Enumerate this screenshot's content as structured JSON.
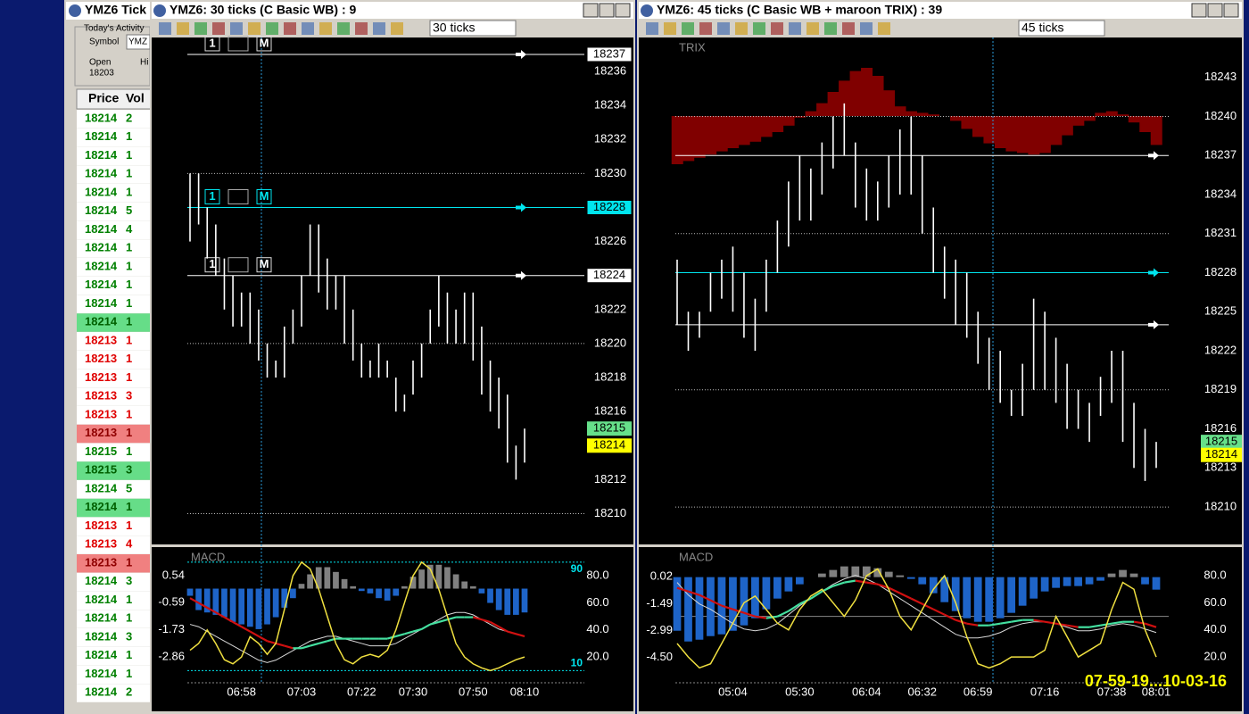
{
  "tick_window": {
    "title": "YMZ6 Tick",
    "activity": "Today's Activity",
    "symbol_label": "Symbol",
    "symbol": "YMZ",
    "open_label": "Open",
    "open": 18203,
    "high_label": "Hi",
    "columns": [
      "Price",
      "Vol"
    ],
    "styles": {
      "buy": {
        "color": "#008000",
        "bg": "#ffffff"
      },
      "buy-hl": {
        "color": "#006000",
        "bg": "#66dd88"
      },
      "sell": {
        "color": "#e00000",
        "bg": "#ffffff"
      },
      "sell-hl": {
        "color": "#900000",
        "bg": "#f08080"
      }
    },
    "rows": [
      [
        18214,
        2,
        "buy"
      ],
      [
        18214,
        1,
        "buy"
      ],
      [
        18214,
        1,
        "buy"
      ],
      [
        18214,
        1,
        "buy"
      ],
      [
        18214,
        1,
        "buy"
      ],
      [
        18214,
        5,
        "buy"
      ],
      [
        18214,
        4,
        "buy"
      ],
      [
        18214,
        1,
        "buy"
      ],
      [
        18214,
        1,
        "buy"
      ],
      [
        18214,
        1,
        "buy"
      ],
      [
        18214,
        1,
        "buy"
      ],
      [
        18214,
        1,
        "buy-hl"
      ],
      [
        18213,
        1,
        "sell"
      ],
      [
        18213,
        1,
        "sell"
      ],
      [
        18213,
        1,
        "sell"
      ],
      [
        18213,
        3,
        "sell"
      ],
      [
        18213,
        1,
        "sell"
      ],
      [
        18213,
        1,
        "sell-hl"
      ],
      [
        18215,
        1,
        "buy"
      ],
      [
        18215,
        3,
        "buy-hl"
      ],
      [
        18214,
        5,
        "buy"
      ],
      [
        18214,
        1,
        "buy-hl"
      ],
      [
        18213,
        1,
        "sell"
      ],
      [
        18213,
        4,
        "sell"
      ],
      [
        18213,
        1,
        "sell-hl"
      ],
      [
        18214,
        3,
        "buy"
      ],
      [
        18214,
        1,
        "buy"
      ],
      [
        18214,
        1,
        "buy"
      ],
      [
        18214,
        3,
        "buy"
      ],
      [
        18214,
        1,
        "buy"
      ],
      [
        18214,
        1,
        "buy"
      ],
      [
        18214,
        2,
        "buy"
      ]
    ]
  },
  "chart_data": [
    {
      "type": "price",
      "title": "YMZ6: 30 ticks (C  Basic WB) : 9",
      "interval": "30 ticks",
      "color": "#ffffff",
      "level_labels": true,
      "categories": [
        null,
        null,
        null,
        null,
        null,
        null,
        "06:58",
        null,
        null,
        null,
        null,
        null,
        null,
        "07:03",
        null,
        null,
        null,
        null,
        null,
        null,
        "07:22",
        null,
        null,
        null,
        null,
        null,
        "07:30",
        null,
        null,
        null,
        null,
        null,
        null,
        "07:50",
        null,
        null,
        null,
        null,
        null,
        "08:10"
      ],
      "high": [
        18230,
        18230,
        18228,
        18227,
        18225,
        18224,
        18223,
        18223,
        18222,
        18220,
        18219,
        18221,
        18222,
        18224,
        18227,
        18227,
        18225,
        18224,
        18224,
        18222,
        18220,
        18219,
        18220,
        18219,
        18218,
        18217,
        18219,
        18220,
        18222,
        18224,
        18223,
        18222,
        18223,
        18223,
        18221,
        18219,
        18218,
        18217,
        18214,
        18215
      ],
      "low": [
        18226,
        18227,
        18225,
        18224,
        18222,
        18221,
        18221,
        18220,
        18219,
        18218,
        18218,
        18218,
        18220,
        18221,
        18224,
        18223,
        18222,
        18222,
        18220,
        18219,
        18218,
        18218,
        18218,
        18218,
        18216,
        18216,
        18217,
        18218,
        18220,
        18221,
        18220,
        18220,
        18220,
        18219,
        18217,
        18216,
        18215,
        18213,
        18212,
        18213
      ],
      "ylim": [
        18208.4,
        18238.1
      ],
      "yticks": [
        18210,
        18212,
        18214,
        18216,
        18218,
        18220,
        18222,
        18224,
        18226,
        18228,
        18230,
        18232,
        18234,
        18236
      ],
      "grid_values": [
        18230,
        18220,
        18210
      ],
      "levels": [
        {
          "price": 18237,
          "color": "#ffffff",
          "order": [
            "1",
            "M"
          ]
        },
        {
          "price": 18228,
          "color": "#00e5ee",
          "order": [
            "1",
            "M"
          ]
        },
        {
          "price": 18224,
          "color": "#ffffff",
          "order": [
            "1",
            "M"
          ]
        }
      ],
      "tags": [
        {
          "price": 18215,
          "color": "#66e08a"
        },
        {
          "price": 18214,
          "color": "#ffff00"
        }
      ],
      "macd": {
        "title": "MACD",
        "ylim": [
          -3.95,
          1.48
        ],
        "yticks": [
          0.54,
          -0.59,
          -1.73,
          -2.86
        ],
        "stoch_ylim": [
          1,
          96.5
        ],
        "stoch_ticks": [
          {
            "value": 80,
            "label": "80.0"
          },
          {
            "value": 60,
            "label": "60.0"
          },
          {
            "value": 40,
            "label": "40.0"
          },
          {
            "value": 20,
            "label": "20.0"
          }
        ],
        "bands": [
          90,
          10
        ],
        "band_color": "#00e5ee",
        "colors": {
          "up": "#808080",
          "down": "#1e64c8",
          "rising": "#44e0a0",
          "falling": "#d01010",
          "signal": "#d8d8d8",
          "stoch": "#f0e040"
        },
        "hist": [
          -0.3,
          -0.9,
          -1.0,
          -1.1,
          -1.2,
          -1.4,
          -1.5,
          -1.6,
          -1.7,
          -1.5,
          -1.2,
          -0.8,
          -0.4,
          0.2,
          0.6,
          0.9,
          0.9,
          0.7,
          0.4,
          0.1,
          -0.1,
          -0.2,
          -0.4,
          -0.5,
          -0.3,
          0.1,
          0.5,
          0.8,
          1.0,
          1.0,
          0.9,
          0.6,
          0.3,
          0.1,
          -0.2,
          -0.6,
          -0.9,
          -1.1,
          -1.1,
          -1.0
        ],
        "macd": [
          -0.4,
          -0.6,
          -0.8,
          -1.0,
          -1.2,
          -1.4,
          -1.6,
          -1.8,
          -2.0,
          -2.2,
          -2.3,
          -2.4,
          -2.5,
          -2.5,
          -2.4,
          -2.3,
          -2.2,
          -2.1,
          -2.1,
          -2.1,
          -2.1,
          -2.1,
          -2.1,
          -2.1,
          -2.0,
          -1.9,
          -1.8,
          -1.7,
          -1.5,
          -1.4,
          -1.3,
          -1.2,
          -1.2,
          -1.2,
          -1.3,
          -1.4,
          -1.6,
          -1.8,
          -1.9,
          -2.0
        ],
        "signal": [
          -1.5,
          -1.6,
          -1.8,
          -2.0,
          -2.2,
          -2.4,
          -2.6,
          -2.8,
          -3.0,
          -3.1,
          -3.0,
          -2.8,
          -2.6,
          -2.4,
          -2.2,
          -2.1,
          -2.0,
          -2.0,
          -2.1,
          -2.2,
          -2.3,
          -2.4,
          -2.4,
          -2.4,
          -2.3,
          -2.1,
          -1.9,
          -1.7,
          -1.5,
          -1.3,
          -1.1,
          -1.0,
          -1.0,
          -1.1,
          -1.3,
          -1.5,
          -1.7,
          -1.8,
          -1.9,
          -2.0
        ],
        "stoch": [
          25,
          30,
          40,
          30,
          18,
          15,
          20,
          35,
          30,
          22,
          30,
          55,
          80,
          90,
          85,
          70,
          50,
          30,
          18,
          15,
          20,
          22,
          20,
          25,
          40,
          60,
          80,
          90,
          85,
          70,
          50,
          30,
          20,
          15,
          12,
          10,
          12,
          15,
          18,
          20
        ]
      }
    },
    {
      "type": "price",
      "title": "YMZ6: 45 ticks (C  Basic WB + maroon TRIX) : 39",
      "interval": "45 ticks",
      "color": "#ffffff",
      "level_labels": false,
      "indicator": "TRIX",
      "trix_color": "#800000",
      "trix_lim": [
        -4,
        4
      ],
      "trix": [
        -3.0,
        -2.8,
        -2.6,
        -2.4,
        -2.2,
        -2.0,
        -1.8,
        -1.6,
        -1.3,
        -1.0,
        -0.6,
        -0.1,
        0.3,
        0.8,
        1.5,
        2.2,
        2.8,
        3.0,
        2.5,
        1.6,
        0.6,
        0.3,
        0.2,
        0.1,
        0.0,
        -0.3,
        -0.8,
        -1.3,
        -1.7,
        -2.0,
        -2.2,
        -2.3,
        -2.4,
        -2.3,
        -1.8,
        -1.2,
        -0.6,
        -0.3,
        0.2,
        0.3,
        0.1,
        -0.4,
        -1.0,
        -1.8
      ],
      "categories": [
        null,
        null,
        null,
        null,
        null,
        "05:04",
        null,
        null,
        null,
        null,
        null,
        "05:30",
        null,
        null,
        null,
        null,
        null,
        "06:04",
        null,
        null,
        null,
        null,
        "06:32",
        null,
        null,
        null,
        null,
        "06:59",
        null,
        null,
        null,
        null,
        null,
        "07:16",
        null,
        null,
        null,
        null,
        null,
        "07:38",
        null,
        null,
        null,
        "08:01"
      ],
      "high": [
        18229,
        18225,
        18225,
        18228,
        18229,
        18230,
        18228,
        18226,
        18229,
        18232,
        18235,
        18237,
        18236,
        18238,
        18240,
        18241,
        18238,
        18236,
        18235,
        18237,
        18239,
        18240,
        18237,
        18233,
        18230,
        18229,
        18228,
        18225,
        18223,
        18222,
        18219,
        18221,
        18226,
        18225,
        18223,
        18221,
        18219,
        18218,
        18220,
        18222,
        18222,
        18218,
        18216,
        18215
      ],
      "low": [
        18224,
        18222,
        18223,
        18225,
        18226,
        18225,
        18223,
        18222,
        18225,
        18228,
        18230,
        18232,
        18232,
        18234,
        18236,
        18237,
        18233,
        18232,
        18232,
        18233,
        18234,
        18234,
        18231,
        18228,
        18226,
        18224,
        18223,
        18221,
        18219,
        18218,
        18217,
        18217,
        18219,
        18219,
        18218,
        18216,
        18216,
        18215,
        18217,
        18218,
        18215,
        18213,
        18212,
        18213
      ],
      "ylim": [
        18207.4,
        18246.2
      ],
      "yticks": [
        18210,
        18213,
        18216,
        18219,
        18222,
        18225,
        18228,
        18231,
        18234,
        18237,
        18240,
        18243
      ],
      "grid_values": [
        18240,
        18231,
        18219,
        18210
      ],
      "levels": [
        {
          "price": 18237,
          "color": "#ffffff"
        },
        {
          "price": 18228,
          "color": "#00e5ee"
        },
        {
          "price": 18224,
          "color": "#ffffff"
        }
      ],
      "tags": [
        {
          "price": 18215,
          "color": "#66e08a"
        },
        {
          "price": 18214,
          "color": "#ffff00"
        }
      ],
      "macd": {
        "title": "MACD",
        "ylim": [
          -5.91,
          1.33
        ],
        "yticks": [
          0.02,
          -1.49,
          -2.99,
          {
            "value": -4.5,
            "label": "-4.50"
          }
        ],
        "stoch_ylim": [
          1,
          96.5
        ],
        "stoch_ticks": [
          {
            "value": 80,
            "label": "80.0"
          },
          {
            "value": 60,
            "label": "60.0"
          },
          {
            "value": 40,
            "label": "40.0"
          },
          {
            "value": 20,
            "label": "20.0"
          }
        ],
        "midline": 50,
        "colors": {
          "up": "#808080",
          "down": "#1e64c8",
          "rising": "#44e0a0",
          "falling": "#d01010",
          "signal": "#d8d8d8",
          "stoch": "#f0e040"
        },
        "hist": [
          -3.0,
          -3.6,
          -3.5,
          -3.3,
          -3.2,
          -3.0,
          -2.7,
          -2.3,
          -1.8,
          -1.2,
          -0.8,
          -0.4,
          0.0,
          0.2,
          0.4,
          0.6,
          0.6,
          0.6,
          0.5,
          0.3,
          0.1,
          -0.1,
          -0.4,
          -0.9,
          -1.4,
          -1.9,
          -2.3,
          -2.5,
          -2.5,
          -2.3,
          -2.0,
          -1.6,
          -1.2,
          -0.8,
          -0.6,
          -0.5,
          -0.5,
          -0.4,
          -0.2,
          0.2,
          0.4,
          0.2,
          -0.4,
          -0.7
        ],
        "macd": [
          -0.6,
          -0.8,
          -1.0,
          -1.3,
          -1.6,
          -1.8,
          -2.0,
          -2.2,
          -2.3,
          -2.2,
          -1.9,
          -1.5,
          -1.2,
          -0.8,
          -0.5,
          -0.3,
          -0.2,
          -0.3,
          -0.4,
          -0.6,
          -0.9,
          -1.2,
          -1.5,
          -1.8,
          -2.1,
          -2.4,
          -2.6,
          -2.7,
          -2.7,
          -2.6,
          -2.5,
          -2.4,
          -2.4,
          -2.5,
          -2.6,
          -2.7,
          -2.8,
          -2.8,
          -2.7,
          -2.6,
          -2.5,
          -2.5,
          -2.6,
          -2.8
        ],
        "signal": [
          -0.3,
          -1.0,
          -1.5,
          -1.8,
          -2.2,
          -2.6,
          -2.9,
          -3.0,
          -2.9,
          -2.6,
          -2.1,
          -1.6,
          -1.2,
          -0.8,
          -0.4,
          -0.1,
          0.1,
          -0.1,
          -0.4,
          -0.8,
          -1.2,
          -1.6,
          -2.0,
          -2.4,
          -2.8,
          -3.2,
          -3.4,
          -3.4,
          -3.3,
          -3.1,
          -2.8,
          -2.6,
          -2.5,
          -2.5,
          -2.6,
          -2.8,
          -3.0,
          -3.0,
          -2.9,
          -2.7,
          -2.6,
          -2.7,
          -2.9,
          -3.1
        ],
        "stoch": [
          30,
          20,
          12,
          15,
          30,
          45,
          60,
          65,
          55,
          45,
          40,
          55,
          65,
          70,
          60,
          50,
          62,
          80,
          85,
          70,
          50,
          40,
          55,
          70,
          80,
          60,
          35,
          15,
          12,
          15,
          20,
          20,
          20,
          25,
          50,
          35,
          20,
          25,
          30,
          55,
          75,
          70,
          40,
          20
        ]
      }
    }
  ],
  "footer": "07-59-19...10-03-16"
}
